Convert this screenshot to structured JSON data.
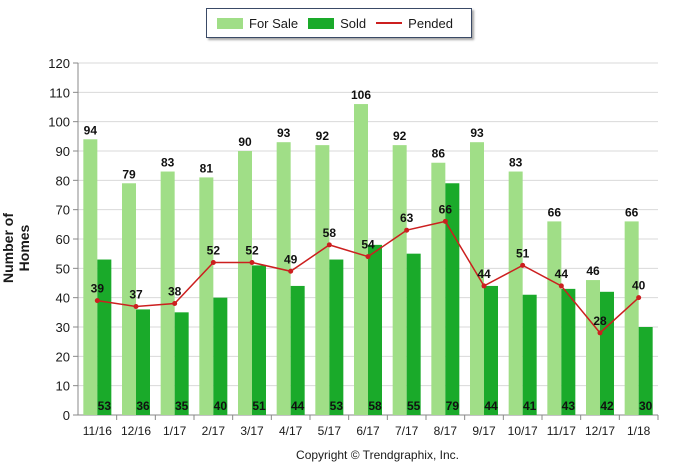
{
  "legend": {
    "for_sale": "For Sale",
    "sold": "Sold",
    "pended": "Pended"
  },
  "colors": {
    "for_sale": "#a0de87",
    "sold": "#1aaa2a",
    "pended": "#cc1f1f",
    "grid": "#d9d9d9",
    "axis": "#888888"
  },
  "copyright": "Copyright © Trendgraphix, Inc.",
  "chart_data": {
    "type": "bar",
    "ylabel": "Number of Homes",
    "xlabel": "",
    "ylim": [
      0,
      120
    ],
    "yticks": [
      0,
      10,
      20,
      30,
      40,
      50,
      60,
      70,
      80,
      90,
      100,
      110,
      120
    ],
    "grid": true,
    "legend_position": "top-center",
    "categories": [
      "11/16",
      "12/16",
      "1/17",
      "2/17",
      "3/17",
      "4/17",
      "5/17",
      "6/17",
      "7/17",
      "8/17",
      "9/17",
      "10/17",
      "11/17",
      "12/17",
      "1/18"
    ],
    "series": [
      {
        "name": "For Sale",
        "type": "bar",
        "values": [
          94,
          79,
          83,
          81,
          90,
          93,
          92,
          106,
          92,
          86,
          93,
          83,
          66,
          46,
          66
        ]
      },
      {
        "name": "Sold",
        "type": "bar",
        "values": [
          53,
          36,
          35,
          40,
          51,
          44,
          53,
          58,
          55,
          79,
          44,
          41,
          43,
          42,
          30
        ]
      },
      {
        "name": "Pended",
        "type": "line",
        "values": [
          39,
          37,
          38,
          52,
          52,
          49,
          58,
          54,
          63,
          66,
          44,
          51,
          44,
          28,
          40
        ]
      }
    ]
  }
}
